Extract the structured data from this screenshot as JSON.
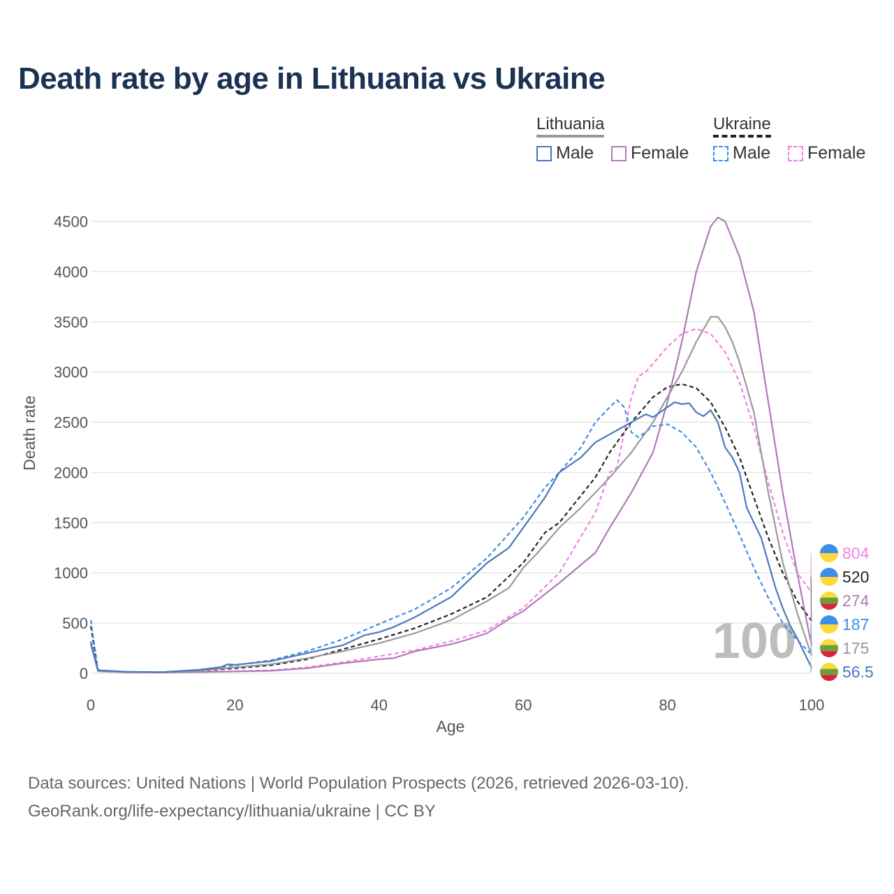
{
  "title": "Death rate by age in Lithuania vs Ukraine",
  "legend": {
    "group1": "Lithuania",
    "group2": "Ukraine",
    "male": "Male",
    "female": "Female"
  },
  "colors": {
    "lt_male": "#4a78bd",
    "lt_female": "#b07ab8",
    "lt_total": "#999999",
    "ua_male": "#3d8ee8",
    "ua_female": "#f27fe8",
    "ua_total": "#222222"
  },
  "source": {
    "line1": "Data sources: United Nations | World Population Prospects (2026, retrieved 2026-03-10).",
    "line2": "GeoRank.org/life-expectancy/lithuania/ukraine | CC BY"
  },
  "chart_data": {
    "type": "line",
    "xlabel": "Age",
    "ylabel": "Death rate",
    "xlim": [
      0,
      100
    ],
    "ylim": [
      0,
      4500
    ],
    "xticks": [
      0,
      20,
      40,
      60,
      80,
      100
    ],
    "yticks": [
      0,
      500,
      1000,
      1500,
      2000,
      2500,
      3000,
      3500,
      4000,
      4500
    ],
    "highlight_age": "100",
    "series": [
      {
        "name": "Ukraine Female",
        "key": "ua_female",
        "style": "dashed",
        "end_label": "804",
        "flag": "ukraine",
        "points": [
          [
            0,
            320
          ],
          [
            1,
            25
          ],
          [
            5,
            10
          ],
          [
            10,
            8
          ],
          [
            15,
            15
          ],
          [
            20,
            22
          ],
          [
            25,
            30
          ],
          [
            30,
            60
          ],
          [
            35,
            110
          ],
          [
            40,
            170
          ],
          [
            45,
            230
          ],
          [
            50,
            320
          ],
          [
            55,
            430
          ],
          [
            60,
            650
          ],
          [
            65,
            1000
          ],
          [
            70,
            1600
          ],
          [
            72,
            2000
          ],
          [
            73,
            2050
          ],
          [
            75,
            2750
          ],
          [
            76,
            2960
          ],
          [
            77,
            3000
          ],
          [
            80,
            3250
          ],
          [
            82,
            3380
          ],
          [
            84,
            3430
          ],
          [
            86,
            3380
          ],
          [
            88,
            3200
          ],
          [
            90,
            2900
          ],
          [
            92,
            2450
          ],
          [
            94,
            1900
          ],
          [
            96,
            1400
          ],
          [
            98,
            1000
          ],
          [
            100,
            804
          ]
        ]
      },
      {
        "name": "Ukraine Total",
        "key": "ua_total",
        "style": "dashed",
        "end_label": "520",
        "flag": "ukraine",
        "points": [
          [
            0,
            470
          ],
          [
            1,
            28
          ],
          [
            5,
            12
          ],
          [
            10,
            10
          ],
          [
            15,
            25
          ],
          [
            20,
            50
          ],
          [
            25,
            80
          ],
          [
            30,
            140
          ],
          [
            35,
            240
          ],
          [
            40,
            340
          ],
          [
            45,
            450
          ],
          [
            50,
            590
          ],
          [
            55,
            760
          ],
          [
            60,
            1100
          ],
          [
            63,
            1400
          ],
          [
            65,
            1500
          ],
          [
            70,
            1950
          ],
          [
            72,
            2200
          ],
          [
            75,
            2500
          ],
          [
            78,
            2750
          ],
          [
            80,
            2850
          ],
          [
            82,
            2880
          ],
          [
            84,
            2840
          ],
          [
            86,
            2700
          ],
          [
            88,
            2450
          ],
          [
            90,
            2150
          ],
          [
            92,
            1750
          ],
          [
            94,
            1350
          ],
          [
            96,
            1000
          ],
          [
            98,
            720
          ],
          [
            100,
            520
          ]
        ]
      },
      {
        "name": "Lithuania Female",
        "key": "lt_female",
        "style": "solid",
        "end_label": "274",
        "flag": "lithuania",
        "points": [
          [
            0,
            290
          ],
          [
            1,
            20
          ],
          [
            5,
            10
          ],
          [
            10,
            8
          ],
          [
            15,
            12
          ],
          [
            20,
            18
          ],
          [
            25,
            25
          ],
          [
            30,
            50
          ],
          [
            35,
            100
          ],
          [
            40,
            140
          ],
          [
            42,
            150
          ],
          [
            45,
            220
          ],
          [
            50,
            290
          ],
          [
            52,
            330
          ],
          [
            55,
            400
          ],
          [
            58,
            540
          ],
          [
            60,
            620
          ],
          [
            65,
            900
          ],
          [
            70,
            1200
          ],
          [
            72,
            1450
          ],
          [
            75,
            1800
          ],
          [
            78,
            2200
          ],
          [
            80,
            2700
          ],
          [
            82,
            3300
          ],
          [
            84,
            4000
          ],
          [
            86,
            4450
          ],
          [
            87,
            4540
          ],
          [
            88,
            4500
          ],
          [
            90,
            4150
          ],
          [
            92,
            3600
          ],
          [
            94,
            2700
          ],
          [
            96,
            1800
          ],
          [
            98,
            1000
          ],
          [
            100,
            274
          ]
        ]
      },
      {
        "name": "Ukraine Male",
        "key": "ua_male",
        "style": "dashed",
        "end_label": "187",
        "flag": "ukraine",
        "points": [
          [
            0,
            530
          ],
          [
            1,
            32
          ],
          [
            5,
            15
          ],
          [
            10,
            12
          ],
          [
            15,
            35
          ],
          [
            20,
            80
          ],
          [
            25,
            130
          ],
          [
            30,
            220
          ],
          [
            35,
            340
          ],
          [
            40,
            490
          ],
          [
            45,
            640
          ],
          [
            50,
            850
          ],
          [
            55,
            1150
          ],
          [
            60,
            1550
          ],
          [
            63,
            1850
          ],
          [
            65,
            2000
          ],
          [
            68,
            2250
          ],
          [
            70,
            2500
          ],
          [
            72,
            2650
          ],
          [
            73,
            2720
          ],
          [
            74,
            2650
          ],
          [
            75,
            2400
          ],
          [
            76,
            2350
          ],
          [
            78,
            2460
          ],
          [
            80,
            2480
          ],
          [
            82,
            2400
          ],
          [
            84,
            2250
          ],
          [
            86,
            2000
          ],
          [
            88,
            1700
          ],
          [
            90,
            1380
          ],
          [
            92,
            1050
          ],
          [
            94,
            750
          ],
          [
            96,
            500
          ],
          [
            98,
            330
          ],
          [
            100,
            187
          ]
        ]
      },
      {
        "name": "Lithuania Total",
        "key": "lt_total",
        "style": "solid",
        "end_label": "175",
        "flag": "lithuania",
        "points": [
          [
            0,
            300
          ],
          [
            1,
            25
          ],
          [
            5,
            12
          ],
          [
            10,
            10
          ],
          [
            15,
            25
          ],
          [
            20,
            60
          ],
          [
            25,
            90
          ],
          [
            30,
            150
          ],
          [
            35,
            220
          ],
          [
            40,
            300
          ],
          [
            45,
            400
          ],
          [
            50,
            530
          ],
          [
            55,
            720
          ],
          [
            58,
            850
          ],
          [
            60,
            1050
          ],
          [
            62,
            1200
          ],
          [
            65,
            1450
          ],
          [
            68,
            1650
          ],
          [
            70,
            1800
          ],
          [
            72,
            1950
          ],
          [
            75,
            2200
          ],
          [
            78,
            2500
          ],
          [
            80,
            2750
          ],
          [
            82,
            3000
          ],
          [
            84,
            3300
          ],
          [
            86,
            3550
          ],
          [
            87,
            3550
          ],
          [
            88,
            3450
          ],
          [
            89,
            3300
          ],
          [
            90,
            3100
          ],
          [
            92,
            2600
          ],
          [
            94,
            1800
          ],
          [
            96,
            1100
          ],
          [
            98,
            600
          ],
          [
            100,
            175
          ]
        ]
      },
      {
        "name": "Lithuania Male",
        "key": "lt_male",
        "style": "solid",
        "end_label": "56.5",
        "flag": "lithuania",
        "points": [
          [
            0,
            310
          ],
          [
            1,
            30
          ],
          [
            5,
            15
          ],
          [
            10,
            12
          ],
          [
            15,
            35
          ],
          [
            18,
            60
          ],
          [
            19,
            90
          ],
          [
            20,
            85
          ],
          [
            25,
            120
          ],
          [
            30,
            200
          ],
          [
            35,
            280
          ],
          [
            38,
            380
          ],
          [
            40,
            410
          ],
          [
            42,
            460
          ],
          [
            45,
            560
          ],
          [
            50,
            760
          ],
          [
            55,
            1100
          ],
          [
            58,
            1250
          ],
          [
            60,
            1450
          ],
          [
            63,
            1750
          ],
          [
            65,
            2000
          ],
          [
            68,
            2150
          ],
          [
            70,
            2300
          ],
          [
            72,
            2380
          ],
          [
            75,
            2500
          ],
          [
            77,
            2580
          ],
          [
            78,
            2550
          ],
          [
            80,
            2650
          ],
          [
            81,
            2700
          ],
          [
            82,
            2680
          ],
          [
            83,
            2690
          ],
          [
            84,
            2600
          ],
          [
            85,
            2560
          ],
          [
            86,
            2620
          ],
          [
            87,
            2500
          ],
          [
            88,
            2250
          ],
          [
            89,
            2150
          ],
          [
            90,
            2000
          ],
          [
            91,
            1650
          ],
          [
            92,
            1500
          ],
          [
            93,
            1350
          ],
          [
            94,
            1100
          ],
          [
            95,
            850
          ],
          [
            96,
            650
          ],
          [
            97,
            480
          ],
          [
            98,
            350
          ],
          [
            99,
            200
          ],
          [
            100,
            56.5
          ]
        ]
      }
    ]
  }
}
